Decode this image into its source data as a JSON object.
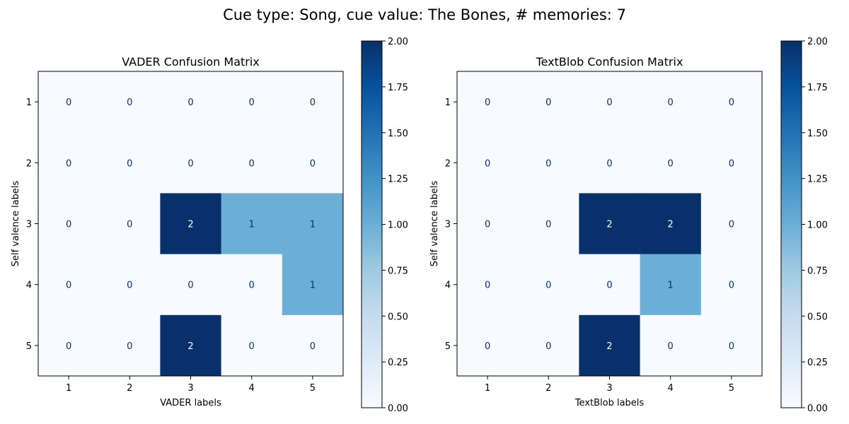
{
  "suptitle": "Cue type: Song, cue value: The Bones, # memories: 7",
  "colormap": {
    "name": "Blues",
    "stops": [
      "#f7fbff",
      "#deebf7",
      "#c6dbef",
      "#9ecae1",
      "#6baed6",
      "#4292c6",
      "#2171b5",
      "#08519c",
      "#08306b"
    ]
  },
  "text_colors": {
    "dark_cell": "#ffffff",
    "light_cell": "#08306b"
  },
  "chart_data": [
    {
      "type": "heatmap",
      "title": "VADER Confusion Matrix",
      "xlabel": "VADER labels",
      "ylabel": "Self valence labels",
      "x_categories": [
        "1",
        "2",
        "3",
        "4",
        "5"
      ],
      "y_categories": [
        "1",
        "2",
        "3",
        "4",
        "5"
      ],
      "values": [
        [
          0,
          0,
          0,
          0,
          0
        ],
        [
          0,
          0,
          0,
          0,
          0
        ],
        [
          0,
          0,
          2,
          1,
          1
        ],
        [
          0,
          0,
          0,
          0,
          1
        ],
        [
          0,
          0,
          2,
          0,
          0
        ]
      ],
      "color_range": [
        0,
        2
      ],
      "colorbar_ticks": [
        "0.00",
        "0.25",
        "0.50",
        "0.75",
        "1.00",
        "1.25",
        "1.50",
        "1.75",
        "2.00"
      ]
    },
    {
      "type": "heatmap",
      "title": "TextBlob Confusion Matrix",
      "xlabel": "TextBlob labels",
      "ylabel": "Self valence labels",
      "x_categories": [
        "1",
        "2",
        "3",
        "4",
        "5"
      ],
      "y_categories": [
        "1",
        "2",
        "3",
        "4",
        "5"
      ],
      "values": [
        [
          0,
          0,
          0,
          0,
          0
        ],
        [
          0,
          0,
          0,
          0,
          0
        ],
        [
          0,
          0,
          2,
          2,
          0
        ],
        [
          0,
          0,
          0,
          1,
          0
        ],
        [
          0,
          0,
          2,
          0,
          0
        ]
      ],
      "color_range": [
        0,
        2
      ],
      "colorbar_ticks": [
        "0.00",
        "0.25",
        "0.50",
        "0.75",
        "1.00",
        "1.25",
        "1.50",
        "1.75",
        "2.00"
      ]
    }
  ]
}
